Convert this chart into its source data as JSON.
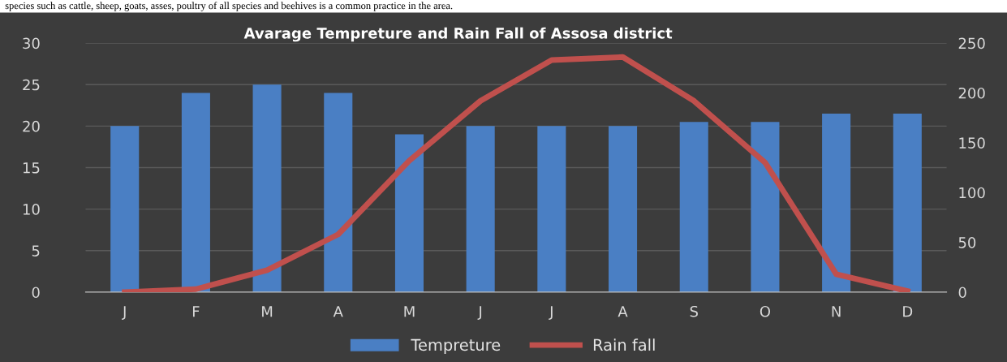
{
  "chart_data": {
    "type": "bar",
    "title": "Avarage Tempreture and Rain Fall of Assosa district",
    "categories": [
      "J",
      "F",
      "M",
      "A",
      "M",
      "J",
      "J",
      "A",
      "S",
      "O",
      "N",
      "D"
    ],
    "series": [
      {
        "name": "Tempreture",
        "color": "#4a7fc4",
        "values": [
          20,
          24,
          25,
          24,
          19,
          20,
          20,
          20,
          20.5,
          20.5,
          21.5,
          21.5
        ]
      },
      {
        "name": "Rain fall",
        "type": "line",
        "axis": "y2",
        "color": "#c0504d",
        "values": [
          0,
          3,
          22,
          58,
          132,
          192,
          233,
          236,
          192,
          130,
          18,
          1
        ]
      }
    ],
    "ylim": [
      0,
      30
    ],
    "yticks": [
      0,
      5,
      10,
      15,
      20,
      25,
      30
    ],
    "y2lim": [
      0,
      250
    ],
    "y2ticks": [
      0,
      50,
      100,
      150,
      200,
      250
    ],
    "grid": "y",
    "legend": "bottom",
    "marker": "none",
    "line_style": "solid",
    "annotations": [
      "species such as cattle, sheep, goats, asses, poultry of all species and beehives is a common practice in the area."
    ]
  }
}
